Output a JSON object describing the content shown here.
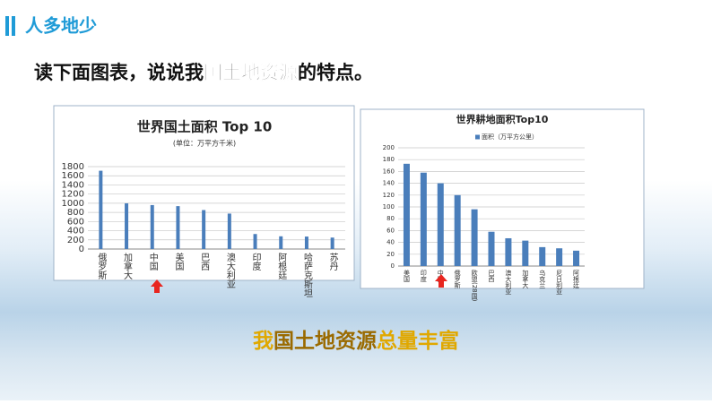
{
  "header": {
    "title": "人多地少"
  },
  "question": {
    "parts": [
      "读下面图表，说说我",
      "国土地资源",
      "的特点。"
    ]
  },
  "chart_data": [
    {
      "type": "bar",
      "title": "世界国土面积 Top 10",
      "subtitle": "(单位：万平方千米)",
      "categories": [
        "俄罗斯",
        "加拿大",
        "中国",
        "美国",
        "巴西",
        "澳大利亚",
        "印度",
        "阿根廷",
        "哈萨克斯坦",
        "苏丹"
      ],
      "values": [
        1710,
        998,
        960,
        937,
        851,
        774,
        328,
        278,
        272,
        250
      ],
      "color": "#4a7ebb",
      "ylim": [
        0,
        1800
      ],
      "yticks": [
        0,
        200,
        400,
        600,
        800,
        1000,
        1200,
        1400,
        1600,
        1800
      ],
      "grid": true
    },
    {
      "type": "bar",
      "title": "世界耕地面积Top10",
      "categories": [
        "美国",
        "印度",
        "中国",
        "俄罗斯",
        "欧盟(28国)",
        "巴西",
        "澳大利亚",
        "加拿大",
        "乌克兰",
        "尼日利亚",
        "阿根廷"
      ],
      "series": [
        {
          "name": "面积（万平方公里）",
          "color": "#4a7ebb",
          "values": [
            173,
            158,
            140,
            120,
            96,
            58,
            47,
            43,
            32,
            30,
            26
          ]
        }
      ],
      "ylim": [
        0,
        200
      ],
      "yticks": [
        0,
        20,
        40,
        60,
        80,
        100,
        120,
        140,
        160,
        180,
        200
      ],
      "grid": true,
      "legend": "top"
    }
  ],
  "conclusion": {
    "parts": [
      "我",
      "国土地资源",
      "总量丰富"
    ]
  }
}
